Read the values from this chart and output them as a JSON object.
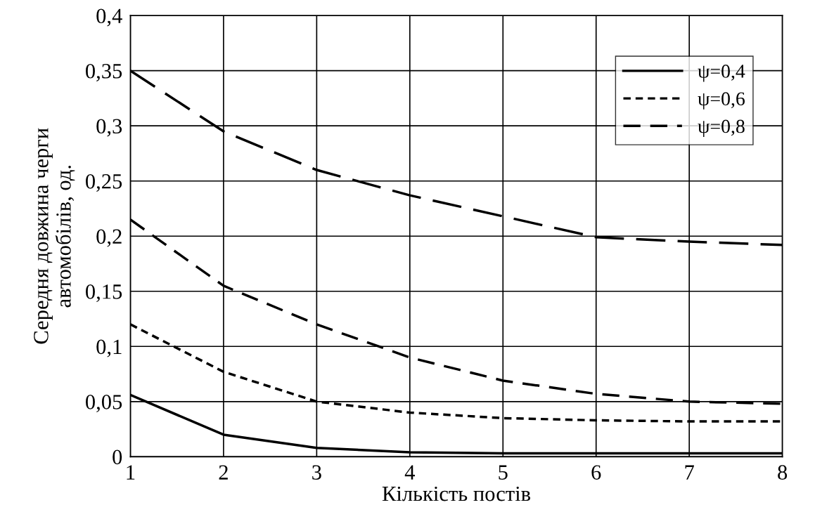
{
  "chart_data": {
    "type": "line",
    "xlabel": "Кількість постів",
    "ylabel": "Середня довжина черги\nавтомобілів, од.",
    "x": [
      1,
      2,
      3,
      4,
      5,
      6,
      7,
      8
    ],
    "series": [
      {
        "name": "ψ=0,4",
        "color": "#000000",
        "line_style": "solid",
        "values": [
          0.056,
          0.02,
          0.008,
          0.004,
          0.003,
          0.003,
          0.003,
          0.003
        ]
      },
      {
        "name": "ψ=0,6",
        "color": "#000000",
        "line_style": "dotted",
        "values": [
          0.12,
          0.077,
          0.05,
          0.04,
          0.035,
          0.033,
          0.032,
          0.032
        ]
      },
      {
        "name": "ψ=0,8",
        "color": "#000000",
        "line_style": "dashed",
        "values": [
          0.215,
          0.155,
          0.12,
          0.09,
          0.069,
          0.057,
          0.05,
          0.048
        ]
      },
      {
        "color": "#000000",
        "line_style": "dashed",
        "values": [
          0.35,
          0.295,
          0.26,
          0.237,
          0.218,
          0.199,
          0.195,
          0.192
        ]
      }
    ],
    "xlim": [
      1,
      8
    ],
    "xticks": [
      1,
      2,
      3,
      4,
      5,
      6,
      7,
      8
    ],
    "ylim": [
      0,
      0.4
    ],
    "yticks": [
      {
        "value": 0,
        "label": "0"
      },
      {
        "value": 0.05,
        "label": "0,05"
      },
      {
        "value": 0.1,
        "label": "0,1"
      },
      {
        "value": 0.15,
        "label": "0,15"
      },
      {
        "value": 0.2,
        "label": "0,2"
      },
      {
        "value": 0.25,
        "label": "0,25"
      },
      {
        "value": 0.3,
        "label": "0,3"
      },
      {
        "value": 0.35,
        "label": "0,35"
      },
      {
        "value": 0.4,
        "label": "0,4"
      }
    ],
    "grid": true,
    "legend": "top right",
    "marker": "none"
  }
}
